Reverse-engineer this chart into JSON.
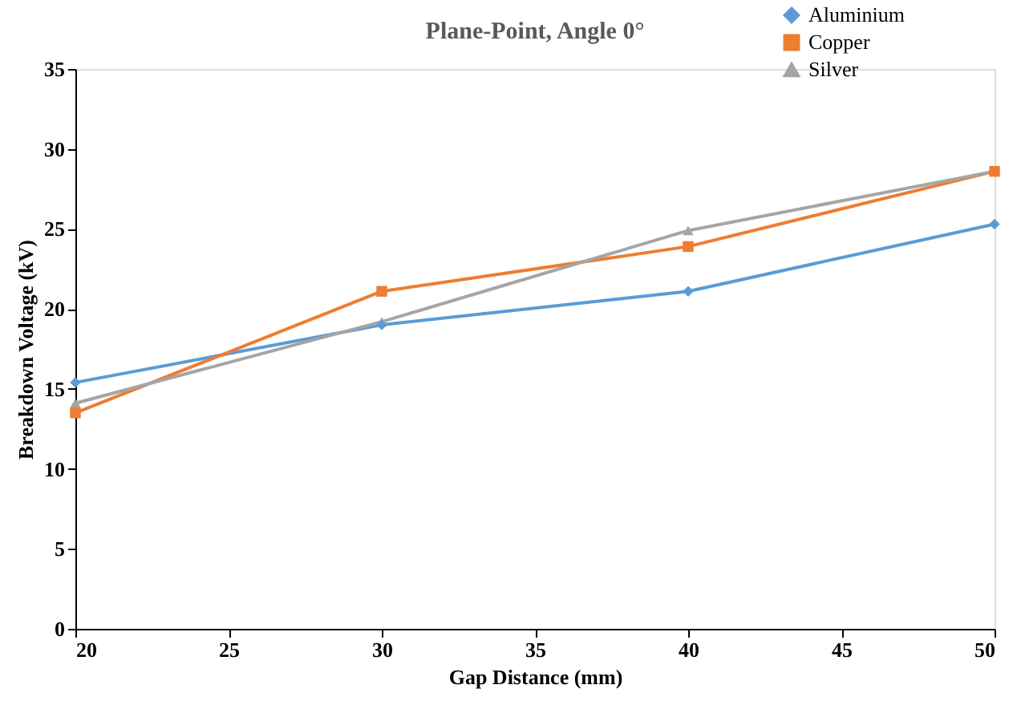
{
  "chart_data": {
    "type": "line",
    "title": "Plane-Point, Angle 0°",
    "xlabel": "Gap Distance (mm)",
    "ylabel": "Breakdown  Voltage (kV)",
    "x": [
      20,
      30,
      40,
      50
    ],
    "series": [
      {
        "name": "Aluminium",
        "color": "#5b9bd5",
        "marker": "diamond",
        "values": [
          15.4,
          19.0,
          21.1,
          25.3
        ]
      },
      {
        "name": "Copper",
        "color": "#ed7d31",
        "marker": "square",
        "values": [
          13.5,
          21.1,
          23.9,
          28.6
        ]
      },
      {
        "name": "Silver",
        "color": "#a5a5a5",
        "marker": "triangle",
        "values": [
          14.1,
          19.2,
          24.9,
          28.6
        ]
      }
    ],
    "xlim": [
      20,
      50
    ],
    "xticks": [
      20,
      25,
      30,
      35,
      40,
      45,
      50
    ],
    "ylim": [
      0,
      35
    ],
    "yticks": [
      0,
      5,
      10,
      15,
      20,
      25,
      30,
      35
    ],
    "grid": false,
    "legend": "top right",
    "line_style": "solid"
  }
}
